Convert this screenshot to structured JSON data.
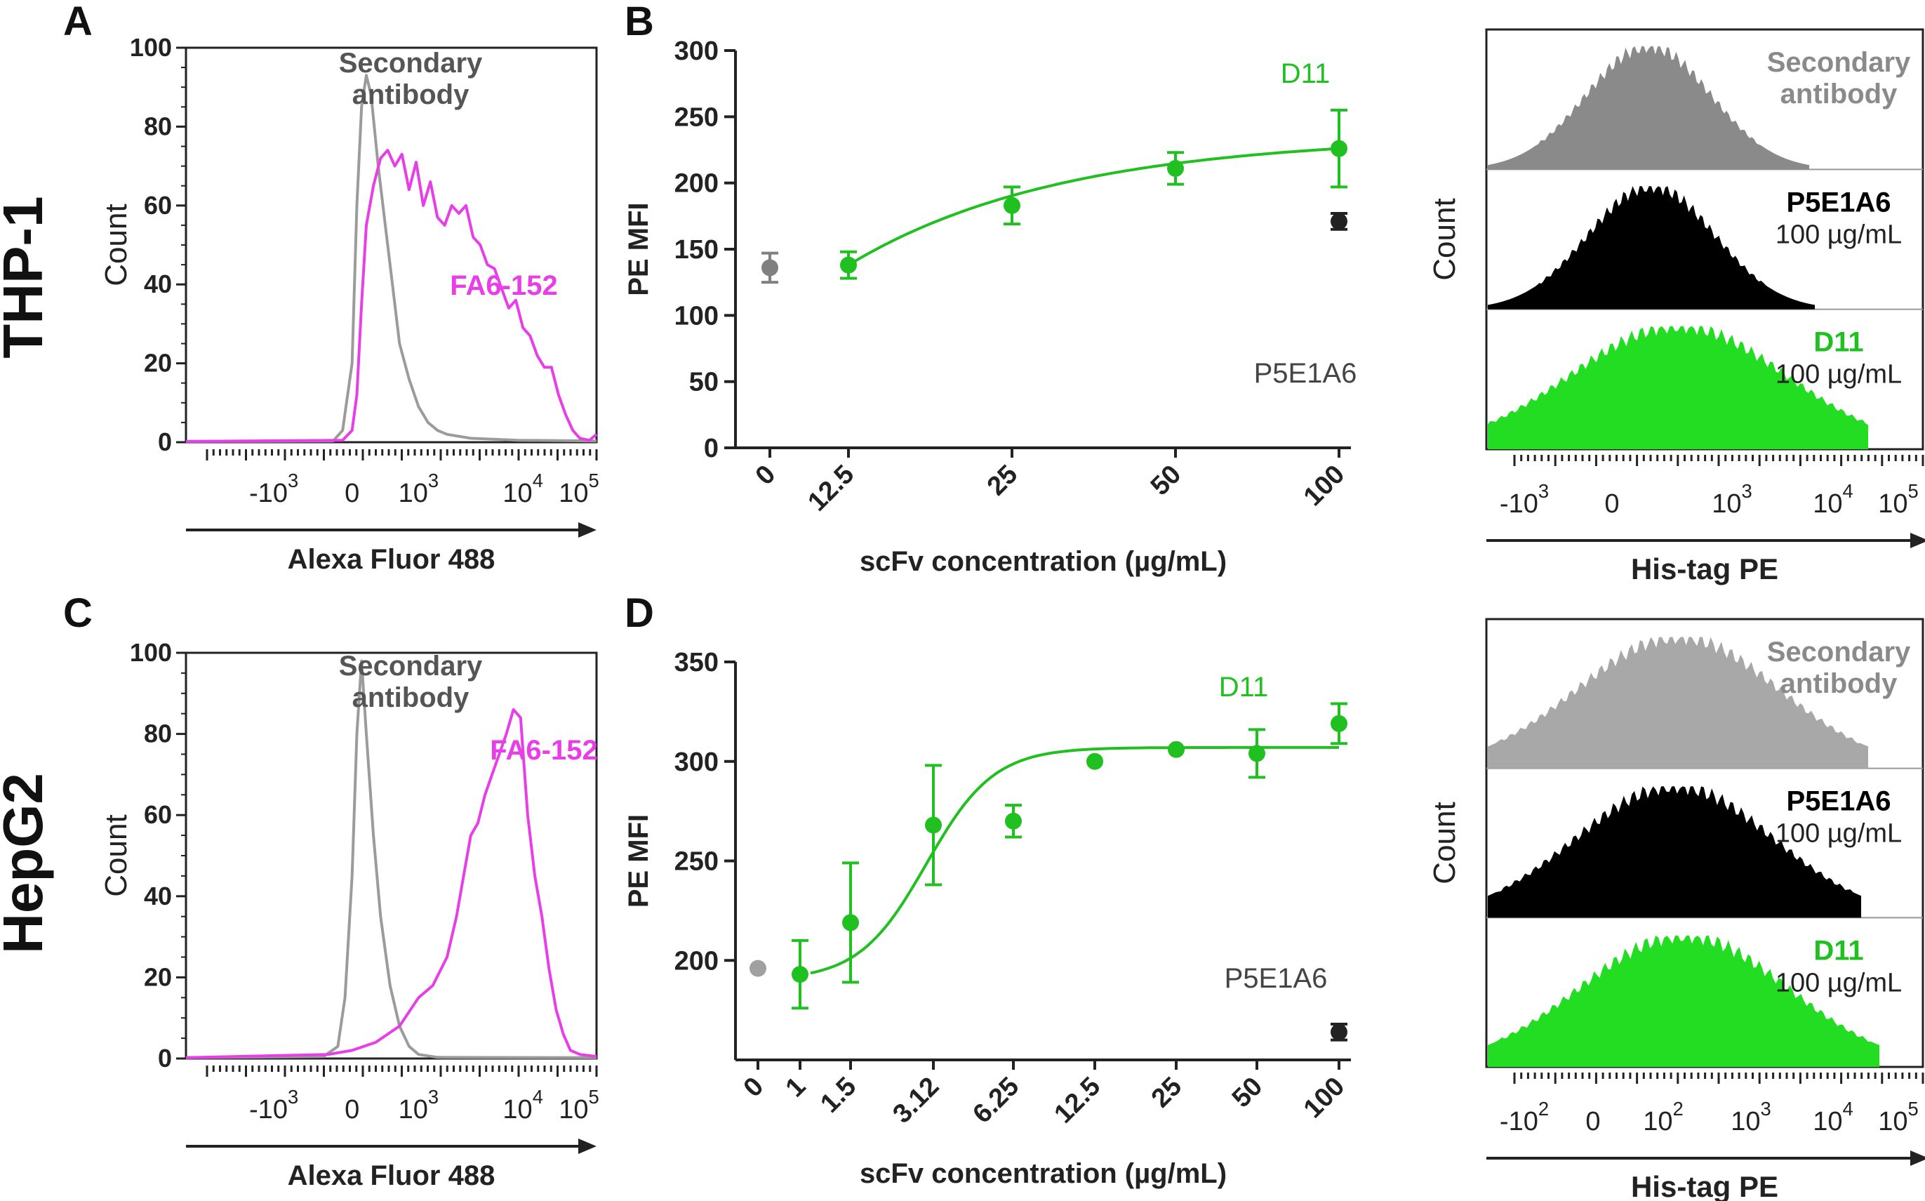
{
  "rows": {
    "top": "THP-1",
    "bottom": "HepG2"
  },
  "panels": {
    "A": "A",
    "B": "B",
    "C": "C",
    "D": "D"
  },
  "chart_data": [
    {
      "panel": "A",
      "type": "line",
      "title": "",
      "xlabel": "Alexa Fluor 488",
      "ylabel": "Count",
      "ylim": [
        0,
        100
      ],
      "yticks": [
        "0",
        "20",
        "40",
        "60",
        "80",
        "100"
      ],
      "xtick_labels": [
        {
          "base": "-10",
          "exp": "3"
        },
        {
          "base": "0",
          "exp": ""
        },
        {
          "base": "10",
          "exp": "3"
        },
        {
          "base": "10",
          "exp": "4"
        },
        {
          "base": "10",
          "exp": "5"
        }
      ],
      "xtick_pos": [
        -1.65,
        0,
        1.4,
        3.6,
        4.78
      ],
      "xlim": [
        -3.5,
        5.15
      ],
      "series": [
        {
          "name": "Secondary antibody",
          "label_lines": [
            "Secondary",
            "antibody"
          ],
          "color": "#9b9b9b",
          "x": [
            -3.5,
            -0.4,
            -0.2,
            0,
            0.1,
            0.2,
            0.3,
            0.4,
            0.55,
            0.7,
            0.85,
            1.0,
            1.2,
            1.4,
            1.6,
            1.8,
            2.0,
            2.5,
            3.5,
            5.15
          ],
          "y": [
            0.2,
            0.3,
            3,
            20,
            60,
            85,
            93,
            88,
            70,
            55,
            40,
            25,
            16,
            9,
            5,
            3,
            2,
            1,
            0.5,
            0.3
          ]
        },
        {
          "name": "FA6-152",
          "label_lines": [
            "FA6-152"
          ],
          "color": "#e83ee8",
          "x": [
            -3.5,
            -0.2,
            0,
            0.1,
            0.2,
            0.3,
            0.45,
            0.6,
            0.75,
            0.9,
            1.05,
            1.2,
            1.35,
            1.5,
            1.65,
            1.8,
            1.95,
            2.1,
            2.25,
            2.4,
            2.55,
            2.7,
            2.85,
            3.0,
            3.15,
            3.3,
            3.45,
            3.6,
            3.75,
            3.9,
            4.05,
            4.2,
            4.35,
            4.5,
            4.65,
            4.8,
            5.0,
            5.15
          ],
          "y": [
            0.2,
            0.5,
            3,
            12,
            35,
            55,
            65,
            72,
            74,
            70,
            73,
            64,
            71,
            60,
            66,
            57,
            55,
            60,
            58,
            60,
            52,
            50,
            45,
            44,
            39,
            34,
            36,
            29,
            27,
            22,
            19,
            19,
            12,
            7,
            3,
            1,
            0.5,
            2
          ]
        }
      ]
    },
    {
      "panel": "B",
      "type": "scatter",
      "title": "",
      "xlabel": "scFv concentration (µg/mL)",
      "ylabel": "PE MFI",
      "ylim": [
        0,
        300
      ],
      "yticks": [
        "0",
        "50",
        "100",
        "150",
        "200",
        "250",
        "300"
      ],
      "xtick_labels": [
        "0",
        "12.5",
        "25",
        "50",
        "100"
      ],
      "series": [
        {
          "name": "Secondary antibody",
          "color": "#808080",
          "points": [
            {
              "x": "0",
              "y": 136,
              "err": 11
            }
          ]
        },
        {
          "name": "D11",
          "color": "#20c020",
          "fit": true,
          "points": [
            {
              "x": "12.5",
              "y": 138,
              "err": 10
            },
            {
              "x": "25",
              "y": 183,
              "err": 14
            },
            {
              "x": "50",
              "y": 211,
              "err": 12
            },
            {
              "x": "100",
              "y": 226,
              "err": 29
            }
          ]
        },
        {
          "name": "P5E1A6",
          "color": "#222222",
          "points": [
            {
              "x": "100",
              "y": 171,
              "err": 6
            }
          ]
        }
      ],
      "legend_labels": [
        "D11",
        "P5E1A6"
      ]
    },
    {
      "panel": "B-right",
      "type": "area",
      "xlabel": "His-tag PE",
      "ylabel": "Count",
      "xtick_labels": [
        {
          "base": "-10",
          "exp": "3"
        },
        {
          "base": "0",
          "exp": ""
        },
        {
          "base": "10",
          "exp": "3"
        },
        {
          "base": "10",
          "exp": "4"
        },
        {
          "base": "10",
          "exp": "5"
        }
      ],
      "series": [
        {
          "name": "Secondary antibody",
          "label_lines": [
            "Secondary",
            "antibody"
          ],
          "conc": "",
          "color": "#8a8a8a",
          "label_color": "#8a8a8a",
          "peak": 0.32,
          "width": 0.22
        },
        {
          "name": "P5E1A6",
          "label_lines": [
            "P5E1A6"
          ],
          "conc": "100 µg/mL",
          "color": "#000000",
          "label_color": "#000000",
          "peak": 0.34,
          "width": 0.22
        },
        {
          "name": "D11",
          "label_lines": [
            "D11"
          ],
          "conc": "100 µg/mL",
          "color": "#22dd22",
          "label_color": "#20c020",
          "peak": 0.62,
          "width": 0.32
        }
      ]
    },
    {
      "panel": "C",
      "type": "line",
      "title": "",
      "xlabel": "Alexa Fluor 488",
      "ylabel": "Count",
      "ylim": [
        0,
        100
      ],
      "yticks": [
        "0",
        "20",
        "40",
        "60",
        "80",
        "100"
      ],
      "xtick_labels": [
        {
          "base": "-10",
          "exp": "3"
        },
        {
          "base": "0",
          "exp": ""
        },
        {
          "base": "10",
          "exp": "3"
        },
        {
          "base": "10",
          "exp": "4"
        },
        {
          "base": "10",
          "exp": "5"
        }
      ],
      "xtick_pos": [
        -1.65,
        0,
        1.4,
        3.6,
        4.78
      ],
      "xlim": [
        -3.5,
        5.15
      ],
      "series": [
        {
          "name": "Secondary antibody",
          "label_lines": [
            "Secondary",
            "antibody"
          ],
          "color": "#9b9b9b",
          "x": [
            -3.5,
            -0.6,
            -0.3,
            -0.15,
            0,
            0.1,
            0.2,
            0.3,
            0.45,
            0.6,
            0.8,
            1.0,
            1.2,
            1.4,
            1.8,
            5.15
          ],
          "y": [
            0.2,
            0.5,
            3,
            15,
            45,
            80,
            98,
            80,
            55,
            35,
            18,
            8,
            3,
            1,
            0.3,
            0.2
          ]
        },
        {
          "name": "FA6-152",
          "label_lines": [
            "FA6-152"
          ],
          "color": "#e83ee8",
          "x": [
            -3.5,
            -0.5,
            0,
            0.5,
            1.0,
            1.4,
            1.7,
            2.0,
            2.2,
            2.35,
            2.5,
            2.65,
            2.8,
            2.95,
            3.1,
            3.25,
            3.4,
            3.55,
            3.7,
            3.85,
            4.0,
            4.15,
            4.3,
            4.45,
            4.6,
            4.8,
            5.15
          ],
          "y": [
            0.2,
            1,
            2,
            4,
            8,
            15,
            18,
            25,
            35,
            45,
            55,
            58,
            65,
            70,
            75,
            80,
            86,
            84,
            60,
            45,
            35,
            22,
            12,
            6,
            2,
            1,
            0.5
          ]
        }
      ]
    },
    {
      "panel": "D",
      "type": "scatter",
      "title": "",
      "xlabel": "scFv concentration (µg/mL)",
      "ylabel": "PE MFI",
      "ylim": [
        150,
        350
      ],
      "yticks": [
        "200",
        "250",
        "300",
        "350"
      ],
      "xtick_labels": [
        "0",
        "1",
        "1.5",
        "3.12",
        "6.25",
        "12.5",
        "25",
        "50",
        "100"
      ],
      "series": [
        {
          "name": "Secondary antibody",
          "color": "#a0a0a0",
          "points": [
            {
              "x": "0",
              "y": 196,
              "err": 0
            }
          ]
        },
        {
          "name": "D11",
          "color": "#20c020",
          "fit": true,
          "points": [
            {
              "x": "1",
              "y": 193,
              "err": 17
            },
            {
              "x": "1.5",
              "y": 219,
              "err": 30
            },
            {
              "x": "3.12",
              "y": 268,
              "err": 30
            },
            {
              "x": "6.25",
              "y": 270,
              "err": 8
            },
            {
              "x": "12.5",
              "y": 300,
              "err": 0
            },
            {
              "x": "25",
              "y": 306,
              "err": 0
            },
            {
              "x": "50",
              "y": 304,
              "err": 12
            },
            {
              "x": "100",
              "y": 319,
              "err": 10
            }
          ]
        },
        {
          "name": "P5E1A6",
          "color": "#222222",
          "points": [
            {
              "x": "100",
              "y": 164,
              "err": 4
            }
          ]
        }
      ],
      "legend_labels": [
        "D11",
        "P5E1A6"
      ]
    },
    {
      "panel": "D-right",
      "type": "area",
      "xlabel": "His-tag PE",
      "ylabel": "Count",
      "xtick_labels": [
        {
          "base": "-10",
          "exp": "2"
        },
        {
          "base": "0",
          "exp": ""
        },
        {
          "base": "10",
          "exp": "2"
        },
        {
          "base": "10",
          "exp": "3"
        },
        {
          "base": "10",
          "exp": "4"
        },
        {
          "base": "10",
          "exp": "5"
        }
      ],
      "series": [
        {
          "name": "Secondary antibody",
          "label_lines": [
            "Secondary",
            "antibody"
          ],
          "conc": "",
          "color": "#a8a8a8",
          "label_color": "#8a8a8a",
          "peak": 0.47,
          "width": 0.3
        },
        {
          "name": "P5E1A6",
          "label_lines": [
            "P5E1A6"
          ],
          "conc": "100 µg/mL",
          "color": "#000000",
          "label_color": "#000000",
          "peak": 0.45,
          "width": 0.3
        },
        {
          "name": "D11",
          "label_lines": [
            "D11"
          ],
          "conc": "100 µg/mL",
          "color": "#22dd22",
          "label_color": "#20c020",
          "peak": 0.49,
          "width": 0.3
        }
      ]
    }
  ]
}
